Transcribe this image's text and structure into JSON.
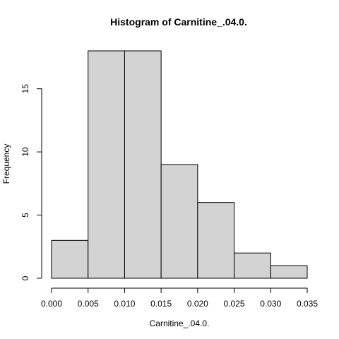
{
  "chart_data": {
    "type": "bar",
    "title": "Histogram of Carnitine_.04.0.",
    "xlabel": "Carnitine_.04.0.",
    "ylabel": "Frequency",
    "bins": [
      {
        "start": 0.0,
        "end": 0.005,
        "count": 3
      },
      {
        "start": 0.005,
        "end": 0.01,
        "count": 18
      },
      {
        "start": 0.01,
        "end": 0.015,
        "count": 18
      },
      {
        "start": 0.015,
        "end": 0.02,
        "count": 9
      },
      {
        "start": 0.02,
        "end": 0.025,
        "count": 6
      },
      {
        "start": 0.025,
        "end": 0.03,
        "count": 2
      },
      {
        "start": 0.03,
        "end": 0.035,
        "count": 1
      }
    ],
    "xlim": [
      0,
      0.035
    ],
    "ylim": [
      0,
      18
    ],
    "x_ticks": [
      "0.000",
      "0.005",
      "0.010",
      "0.015",
      "0.020",
      "0.025",
      "0.030",
      "0.035"
    ],
    "y_ticks": [
      "0",
      "5",
      "10",
      "15"
    ],
    "bar_fill": "#d3d3d3",
    "bar_stroke": "#000000",
    "grid": false
  }
}
